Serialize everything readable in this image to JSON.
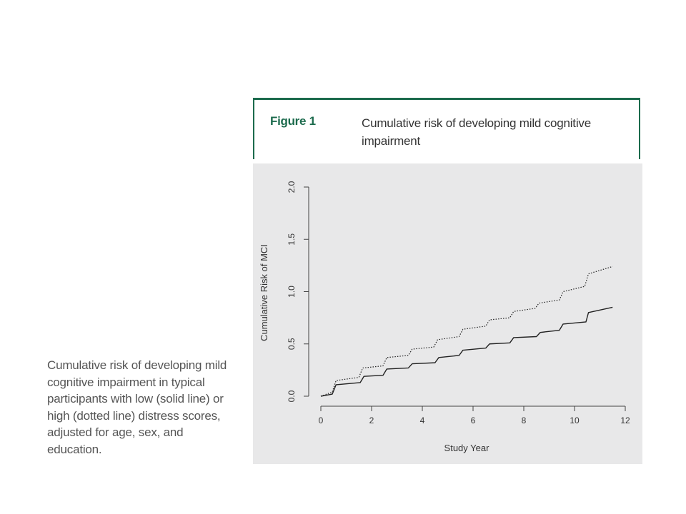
{
  "figure": {
    "label": "Figure 1",
    "title": "Cumulative risk of developing mild cognitive impairment"
  },
  "caption": "Cumulative risk of developing mild cognitive impairment in typical participants with low (solid line) or high (dotted line) distress scores, adjusted for age, sex, and education.",
  "colors": {
    "accent": "#1c6b4d",
    "panel": "#e8e8e9",
    "line": "#222222"
  },
  "chart_data": {
    "type": "line",
    "title": "",
    "xlabel": "Study Year",
    "ylabel": "Cumulative Risk of MCI",
    "xlim": [
      0,
      12
    ],
    "ylim": [
      0,
      2
    ],
    "xticks": [
      0,
      2,
      4,
      6,
      8,
      10,
      12
    ],
    "yticks": [
      0.0,
      0.5,
      1.0,
      1.5,
      2.0
    ],
    "ytick_labels": [
      "0.0",
      "0.5",
      "1.0",
      "1.5",
      "2.0"
    ],
    "grid": false,
    "legend": "none",
    "series": [
      {
        "style": "solid",
        "x": [
          0,
          0.45,
          0.6,
          1.55,
          1.7,
          2.45,
          2.6,
          3.45,
          3.6,
          4.5,
          4.65,
          5.45,
          5.6,
          6.5,
          6.65,
          7.45,
          7.6,
          8.5,
          8.65,
          9.4,
          9.55,
          10.45,
          10.55,
          11.5
        ],
        "y": [
          0.0,
          0.02,
          0.11,
          0.13,
          0.19,
          0.2,
          0.26,
          0.27,
          0.31,
          0.32,
          0.37,
          0.39,
          0.44,
          0.46,
          0.5,
          0.51,
          0.56,
          0.57,
          0.61,
          0.63,
          0.69,
          0.71,
          0.8,
          0.85
        ]
      },
      {
        "style": "dotted",
        "x": [
          0,
          0.45,
          0.6,
          1.5,
          1.65,
          2.45,
          2.6,
          3.45,
          3.6,
          4.45,
          4.6,
          5.45,
          5.6,
          6.5,
          6.65,
          7.45,
          7.6,
          8.45,
          8.6,
          9.4,
          9.55,
          10.4,
          10.55,
          11.5
        ],
        "y": [
          0.0,
          0.04,
          0.15,
          0.18,
          0.27,
          0.29,
          0.37,
          0.39,
          0.45,
          0.47,
          0.54,
          0.57,
          0.64,
          0.67,
          0.73,
          0.75,
          0.81,
          0.84,
          0.89,
          0.92,
          1.0,
          1.05,
          1.17,
          1.24
        ]
      }
    ]
  }
}
